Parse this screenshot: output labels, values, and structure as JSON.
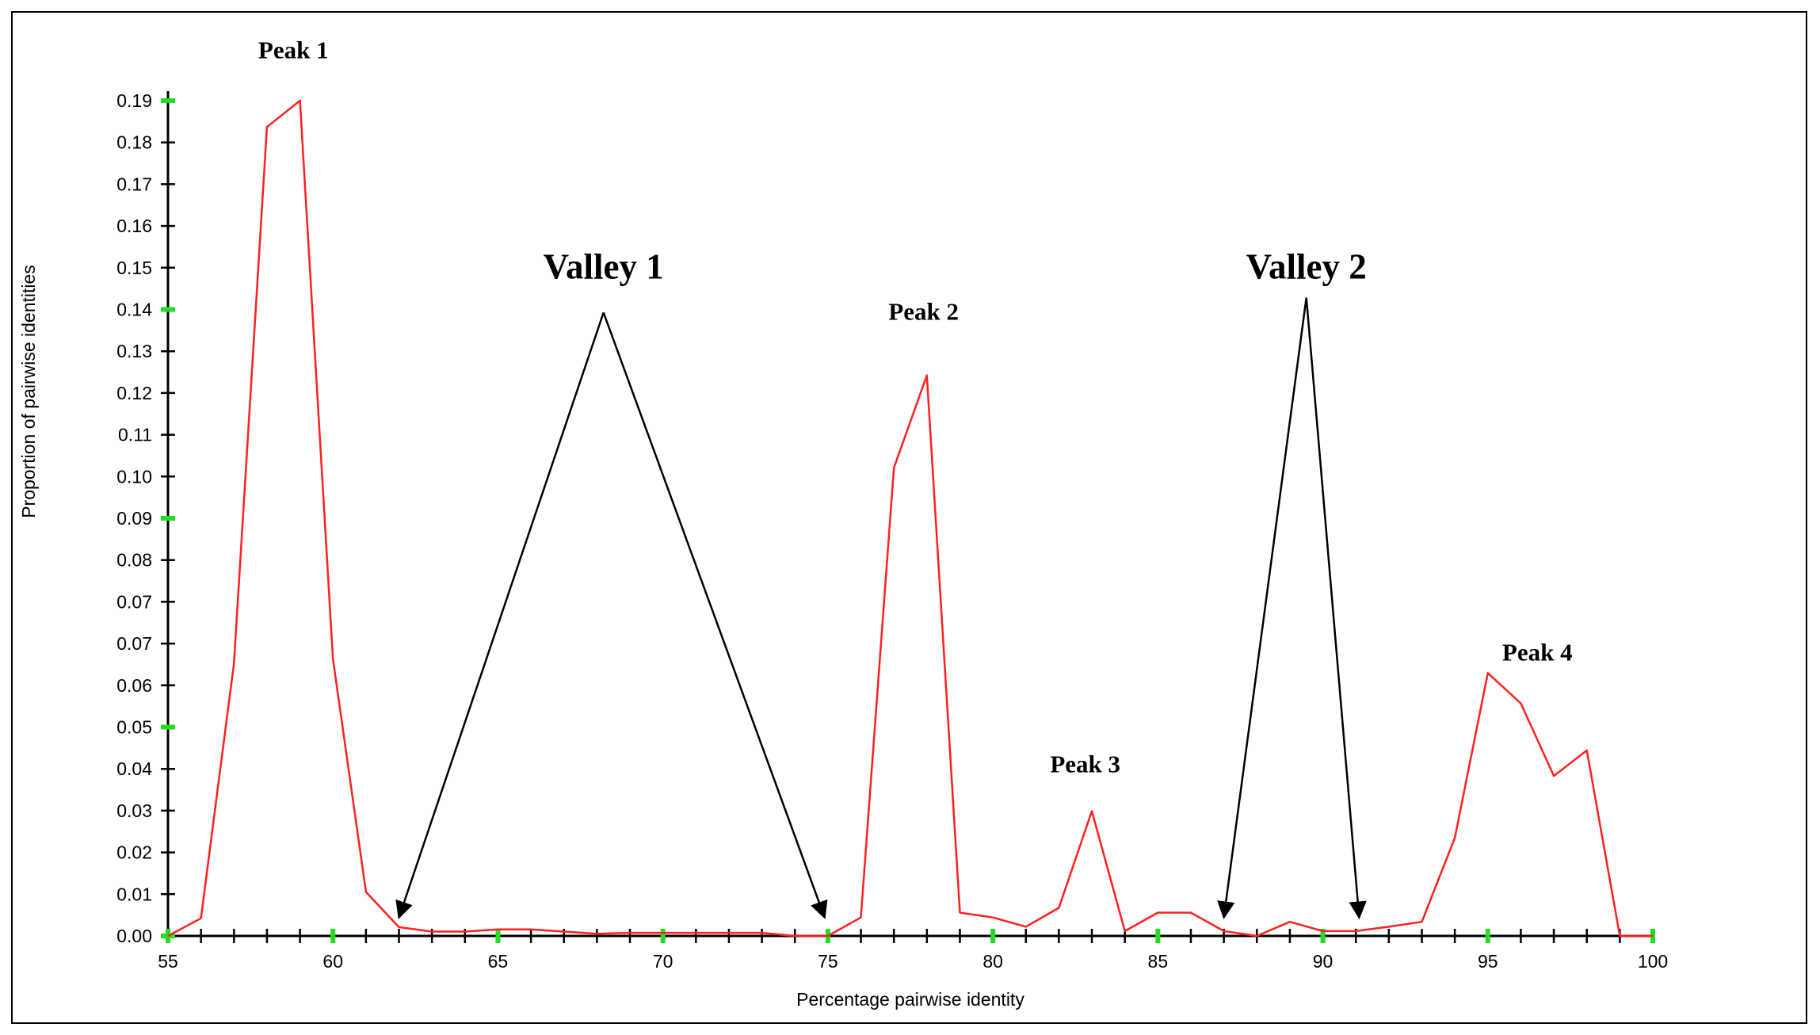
{
  "chart_data": {
    "type": "line",
    "title": "",
    "xlabel": "Percentage pairwise identity",
    "ylabel": "Proportion of pairwise identities",
    "xlim": [
      55,
      100
    ],
    "ylim": [
      0,
      0.19
    ],
    "x_ticks": [
      "55",
      "60",
      "65",
      "70",
      "75",
      "80",
      "85",
      "90",
      "95",
      "100"
    ],
    "y_ticks": [
      "0.00",
      "0.01",
      "0.02",
      "0.03",
      "0.04",
      "0.05",
      "0.06",
      "0.07",
      "0.07",
      "0.08",
      "0.09",
      "0.10",
      "0.11",
      "0.12",
      "0.13",
      "0.14",
      "0.15",
      "0.16",
      "0.17",
      "0.18",
      "0.19"
    ],
    "grid": false,
    "colors": {
      "line": "#ff2020",
      "tick_marker": "#22dd22",
      "axis": "#000000",
      "arrow": "#000000"
    },
    "series": [
      {
        "x": [
          55,
          56,
          57,
          58,
          59,
          60,
          61,
          62,
          63,
          64,
          65,
          66,
          67,
          68,
          69,
          70,
          71,
          72,
          73,
          74,
          75,
          76,
          77,
          78,
          79,
          80,
          81,
          82,
          83,
          84,
          85,
          86,
          87,
          88,
          89,
          90,
          91,
          92,
          93,
          94,
          95,
          96,
          97,
          98,
          99,
          100
        ],
        "values": [
          0.0,
          0.004,
          0.062,
          0.184,
          0.19,
          0.063,
          0.01,
          0.002,
          0.001,
          0.001,
          0.0015,
          0.0015,
          0.001,
          0.0005,
          0.0007,
          0.0007,
          0.0007,
          0.0007,
          0.0007,
          0.0,
          0.0,
          0.0042,
          0.1065,
          0.1275,
          0.0053,
          0.0042,
          0.0021,
          0.0064,
          0.0284,
          0.0011,
          0.0053,
          0.0053,
          0.0011,
          0.0,
          0.0032,
          0.0011,
          0.0011,
          0.0021,
          0.0032,
          0.0223,
          0.0598,
          0.0529,
          0.0364,
          0.0422,
          0.0,
          0.0
        ]
      }
    ],
    "annotations": [
      {
        "text": "Peak 1",
        "x": 58.8,
        "y": 0.1996
      },
      {
        "text": "Peak 2",
        "x": 77.9,
        "y": 0.1402
      },
      {
        "text": "Peak 3",
        "x": 82.8,
        "y": 0.0372
      },
      {
        "text": "Peak 4",
        "x": 96.5,
        "y": 0.0626
      },
      {
        "text": "Valley 1",
        "x": 68.2,
        "y": 0.1495,
        "apex": [
          68.2,
          0.1418
        ],
        "targets": [
          [
            62.0,
            0.0042
          ],
          [
            74.9,
            0.0042
          ]
        ]
      },
      {
        "text": "Valley 2",
        "x": 89.5,
        "y": 0.1495,
        "apex": [
          89.5,
          0.1452
        ],
        "targets": [
          [
            87.0,
            0.0042
          ],
          [
            91.1,
            0.0042
          ]
        ]
      }
    ]
  }
}
